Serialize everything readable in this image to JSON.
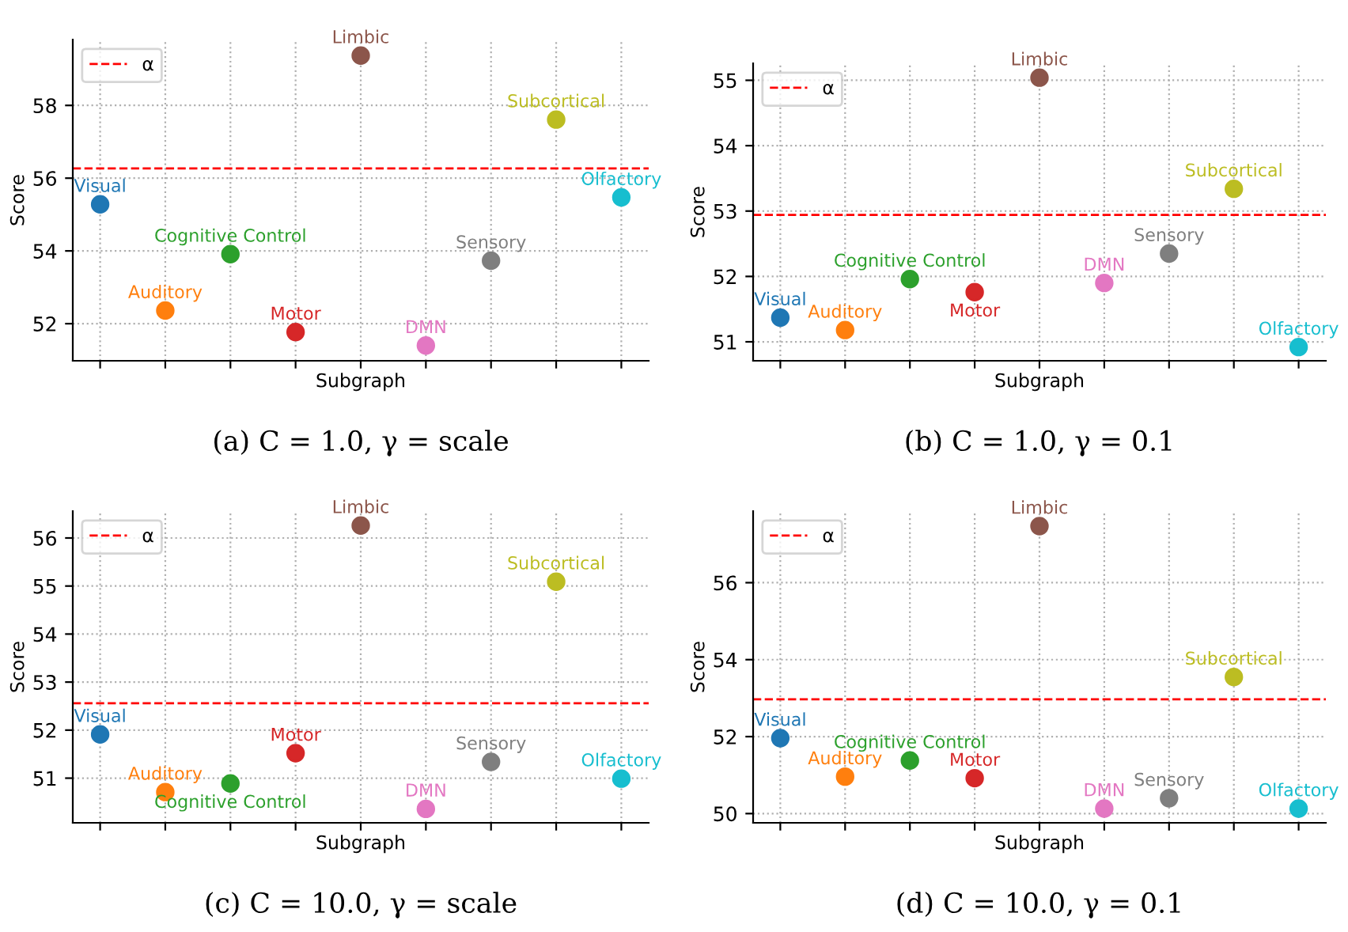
{
  "chart_data": [
    {
      "type": "scatter",
      "xlabel": "Subgraph",
      "ylabel": "Score",
      "categories": [
        null,
        null,
        null,
        null,
        null,
        null,
        null,
        null,
        null
      ],
      "ylim": [
        50.98,
        59.81
      ],
      "yticks": [
        52,
        54,
        56,
        58
      ],
      "grid": true,
      "legend": "top left",
      "tick_labels": "y",
      "marker": "circle",
      "ref_lines": [
        {
          "axis": "y",
          "value": 56.27,
          "label": "α",
          "color": "#ff0000",
          "line_style": "dashed"
        }
      ],
      "annotations": [
        "(a) C = 1.0, γ = scale"
      ],
      "series": [
        {
          "name": "Visual",
          "color": "#1f77b4",
          "values": [
            55.28,
            null,
            null,
            null,
            null,
            null,
            null,
            null,
            null
          ]
        },
        {
          "name": "Auditory",
          "color": "#ff7f0e",
          "values": [
            null,
            52.36,
            null,
            null,
            null,
            null,
            null,
            null,
            null
          ]
        },
        {
          "name": "Cognitive Control",
          "color": "#2ca02c",
          "values": [
            null,
            null,
            53.91,
            null,
            null,
            null,
            null,
            null,
            null
          ]
        },
        {
          "name": "Motor",
          "color": "#d62728",
          "values": [
            null,
            null,
            null,
            51.77,
            null,
            null,
            null,
            null,
            null
          ]
        },
        {
          "name": "Limbic",
          "color": "#8c564b",
          "values": [
            null,
            null,
            null,
            null,
            59.37,
            null,
            null,
            null,
            null
          ]
        },
        {
          "name": "DMN",
          "color": "#e377c2",
          "values": [
            null,
            null,
            null,
            null,
            null,
            51.4,
            null,
            null,
            null
          ]
        },
        {
          "name": "Sensory",
          "color": "#7f7f7f",
          "values": [
            null,
            null,
            null,
            null,
            null,
            null,
            53.73,
            null,
            null
          ]
        },
        {
          "name": "Subcortical",
          "color": "#bcbd22",
          "values": [
            null,
            null,
            null,
            null,
            null,
            null,
            null,
            57.61,
            null
          ]
        },
        {
          "name": "Olfactory",
          "color": "#17becf",
          "values": [
            null,
            null,
            null,
            null,
            null,
            null,
            null,
            null,
            55.47
          ]
        }
      ]
    },
    {
      "type": "scatter",
      "xlabel": "Subgraph",
      "ylabel": "Score",
      "categories": [
        null,
        null,
        null,
        null,
        null,
        null,
        null,
        null,
        null
      ],
      "ylim": [
        50.71,
        55.26
      ],
      "yticks": [
        51,
        52,
        53,
        54,
        55
      ],
      "grid": true,
      "legend": "top left",
      "tick_labels": "y",
      "marker": "circle",
      "ref_lines": [
        {
          "axis": "y",
          "value": 52.94,
          "label": "α",
          "color": "#ff0000",
          "line_style": "dashed"
        }
      ],
      "annotations": [
        "(b) C = 1.0, γ = 0.1"
      ],
      "series": [
        {
          "name": "Visual",
          "color": "#1f77b4",
          "values": [
            51.37,
            null,
            null,
            null,
            null,
            null,
            null,
            null,
            null
          ]
        },
        {
          "name": "Auditory",
          "color": "#ff7f0e",
          "values": [
            null,
            51.18,
            null,
            null,
            null,
            null,
            null,
            null,
            null
          ]
        },
        {
          "name": "Cognitive Control",
          "color": "#2ca02c",
          "values": [
            null,
            null,
            51.96,
            null,
            null,
            null,
            null,
            null,
            null
          ]
        },
        {
          "name": "Motor",
          "color": "#d62728",
          "values": [
            null,
            null,
            null,
            51.76,
            null,
            null,
            null,
            null,
            null
          ]
        },
        {
          "name": "Limbic",
          "color": "#8c564b",
          "values": [
            null,
            null,
            null,
            null,
            55.04,
            null,
            null,
            null,
            null
          ]
        },
        {
          "name": "DMN",
          "color": "#e377c2",
          "values": [
            null,
            null,
            null,
            null,
            null,
            51.9,
            null,
            null,
            null
          ]
        },
        {
          "name": "Sensory",
          "color": "#7f7f7f",
          "values": [
            null,
            null,
            null,
            null,
            null,
            null,
            52.35,
            null,
            null
          ]
        },
        {
          "name": "Subcortical",
          "color": "#bcbd22",
          "values": [
            null,
            null,
            null,
            null,
            null,
            null,
            null,
            53.34,
            null
          ]
        },
        {
          "name": "Olfactory",
          "color": "#17becf",
          "values": [
            null,
            null,
            null,
            null,
            null,
            null,
            null,
            null,
            50.92
          ]
        }
      ]
    },
    {
      "type": "scatter",
      "xlabel": "Subgraph",
      "ylabel": "Score",
      "categories": [
        null,
        null,
        null,
        null,
        null,
        null,
        null,
        null,
        null
      ],
      "ylim": [
        50.07,
        56.56
      ],
      "yticks": [
        51,
        52,
        53,
        54,
        55,
        56
      ],
      "grid": true,
      "legend": "top left",
      "tick_labels": "y",
      "marker": "circle",
      "ref_lines": [
        {
          "axis": "y",
          "value": 52.56,
          "label": "α",
          "color": "#ff0000",
          "line_style": "dashed"
        }
      ],
      "annotations": [
        "(c) C = 10.0, γ = scale"
      ],
      "series": [
        {
          "name": "Visual",
          "color": "#1f77b4",
          "values": [
            51.91,
            null,
            null,
            null,
            null,
            null,
            null,
            null,
            null
          ]
        },
        {
          "name": "Auditory",
          "color": "#ff7f0e",
          "values": [
            null,
            50.71,
            null,
            null,
            null,
            null,
            null,
            null,
            null
          ]
        },
        {
          "name": "Cognitive Control",
          "color": "#2ca02c",
          "values": [
            null,
            null,
            50.89,
            null,
            null,
            null,
            null,
            null,
            null
          ]
        },
        {
          "name": "Motor",
          "color": "#d62728",
          "values": [
            null,
            null,
            null,
            51.52,
            null,
            null,
            null,
            null,
            null
          ]
        },
        {
          "name": "Limbic",
          "color": "#8c564b",
          "values": [
            null,
            null,
            null,
            null,
            56.26,
            null,
            null,
            null,
            null
          ]
        },
        {
          "name": "DMN",
          "color": "#e377c2",
          "values": [
            null,
            null,
            null,
            null,
            null,
            50.36,
            null,
            null,
            null
          ]
        },
        {
          "name": "Sensory",
          "color": "#7f7f7f",
          "values": [
            null,
            null,
            null,
            null,
            null,
            null,
            51.34,
            null,
            null
          ]
        },
        {
          "name": "Subcortical",
          "color": "#bcbd22",
          "values": [
            null,
            null,
            null,
            null,
            null,
            null,
            null,
            55.09,
            null
          ]
        },
        {
          "name": "Olfactory",
          "color": "#17becf",
          "values": [
            null,
            null,
            null,
            null,
            null,
            null,
            null,
            null,
            50.99
          ]
        }
      ]
    },
    {
      "type": "scatter",
      "xlabel": "Subgraph",
      "ylabel": "Score",
      "categories": [
        null,
        null,
        null,
        null,
        null,
        null,
        null,
        null,
        null
      ],
      "ylim": [
        49.76,
        57.86
      ],
      "yticks": [
        50,
        52,
        54,
        56
      ],
      "grid": true,
      "legend": "top left",
      "tick_labels": "y",
      "marker": "circle",
      "ref_lines": [
        {
          "axis": "y",
          "value": 52.97,
          "label": "α",
          "color": "#ff0000",
          "line_style": "dashed"
        }
      ],
      "annotations": [
        "(d) C = 10.0, γ = 0.1"
      ],
      "series": [
        {
          "name": "Visual",
          "color": "#1f77b4",
          "values": [
            51.96,
            null,
            null,
            null,
            null,
            null,
            null,
            null,
            null
          ]
        },
        {
          "name": "Auditory",
          "color": "#ff7f0e",
          "values": [
            null,
            50.96,
            null,
            null,
            null,
            null,
            null,
            null,
            null
          ]
        },
        {
          "name": "Cognitive Control",
          "color": "#2ca02c",
          "values": [
            null,
            null,
            51.38,
            null,
            null,
            null,
            null,
            null,
            null
          ]
        },
        {
          "name": "Motor",
          "color": "#d62728",
          "values": [
            null,
            null,
            null,
            50.92,
            null,
            null,
            null,
            null,
            null
          ]
        },
        {
          "name": "Limbic",
          "color": "#8c564b",
          "values": [
            null,
            null,
            null,
            null,
            57.47,
            null,
            null,
            null,
            null
          ]
        },
        {
          "name": "DMN",
          "color": "#e377c2",
          "values": [
            null,
            null,
            null,
            null,
            null,
            50.13,
            null,
            null,
            null
          ]
        },
        {
          "name": "Sensory",
          "color": "#7f7f7f",
          "values": [
            null,
            null,
            null,
            null,
            null,
            null,
            50.4,
            null,
            null
          ]
        },
        {
          "name": "Subcortical",
          "color": "#bcbd22",
          "values": [
            null,
            null,
            null,
            null,
            null,
            null,
            null,
            53.55,
            null
          ]
        },
        {
          "name": "Olfactory",
          "color": "#17becf",
          "values": [
            null,
            null,
            null,
            null,
            null,
            null,
            null,
            null,
            50.13
          ]
        }
      ]
    }
  ]
}
